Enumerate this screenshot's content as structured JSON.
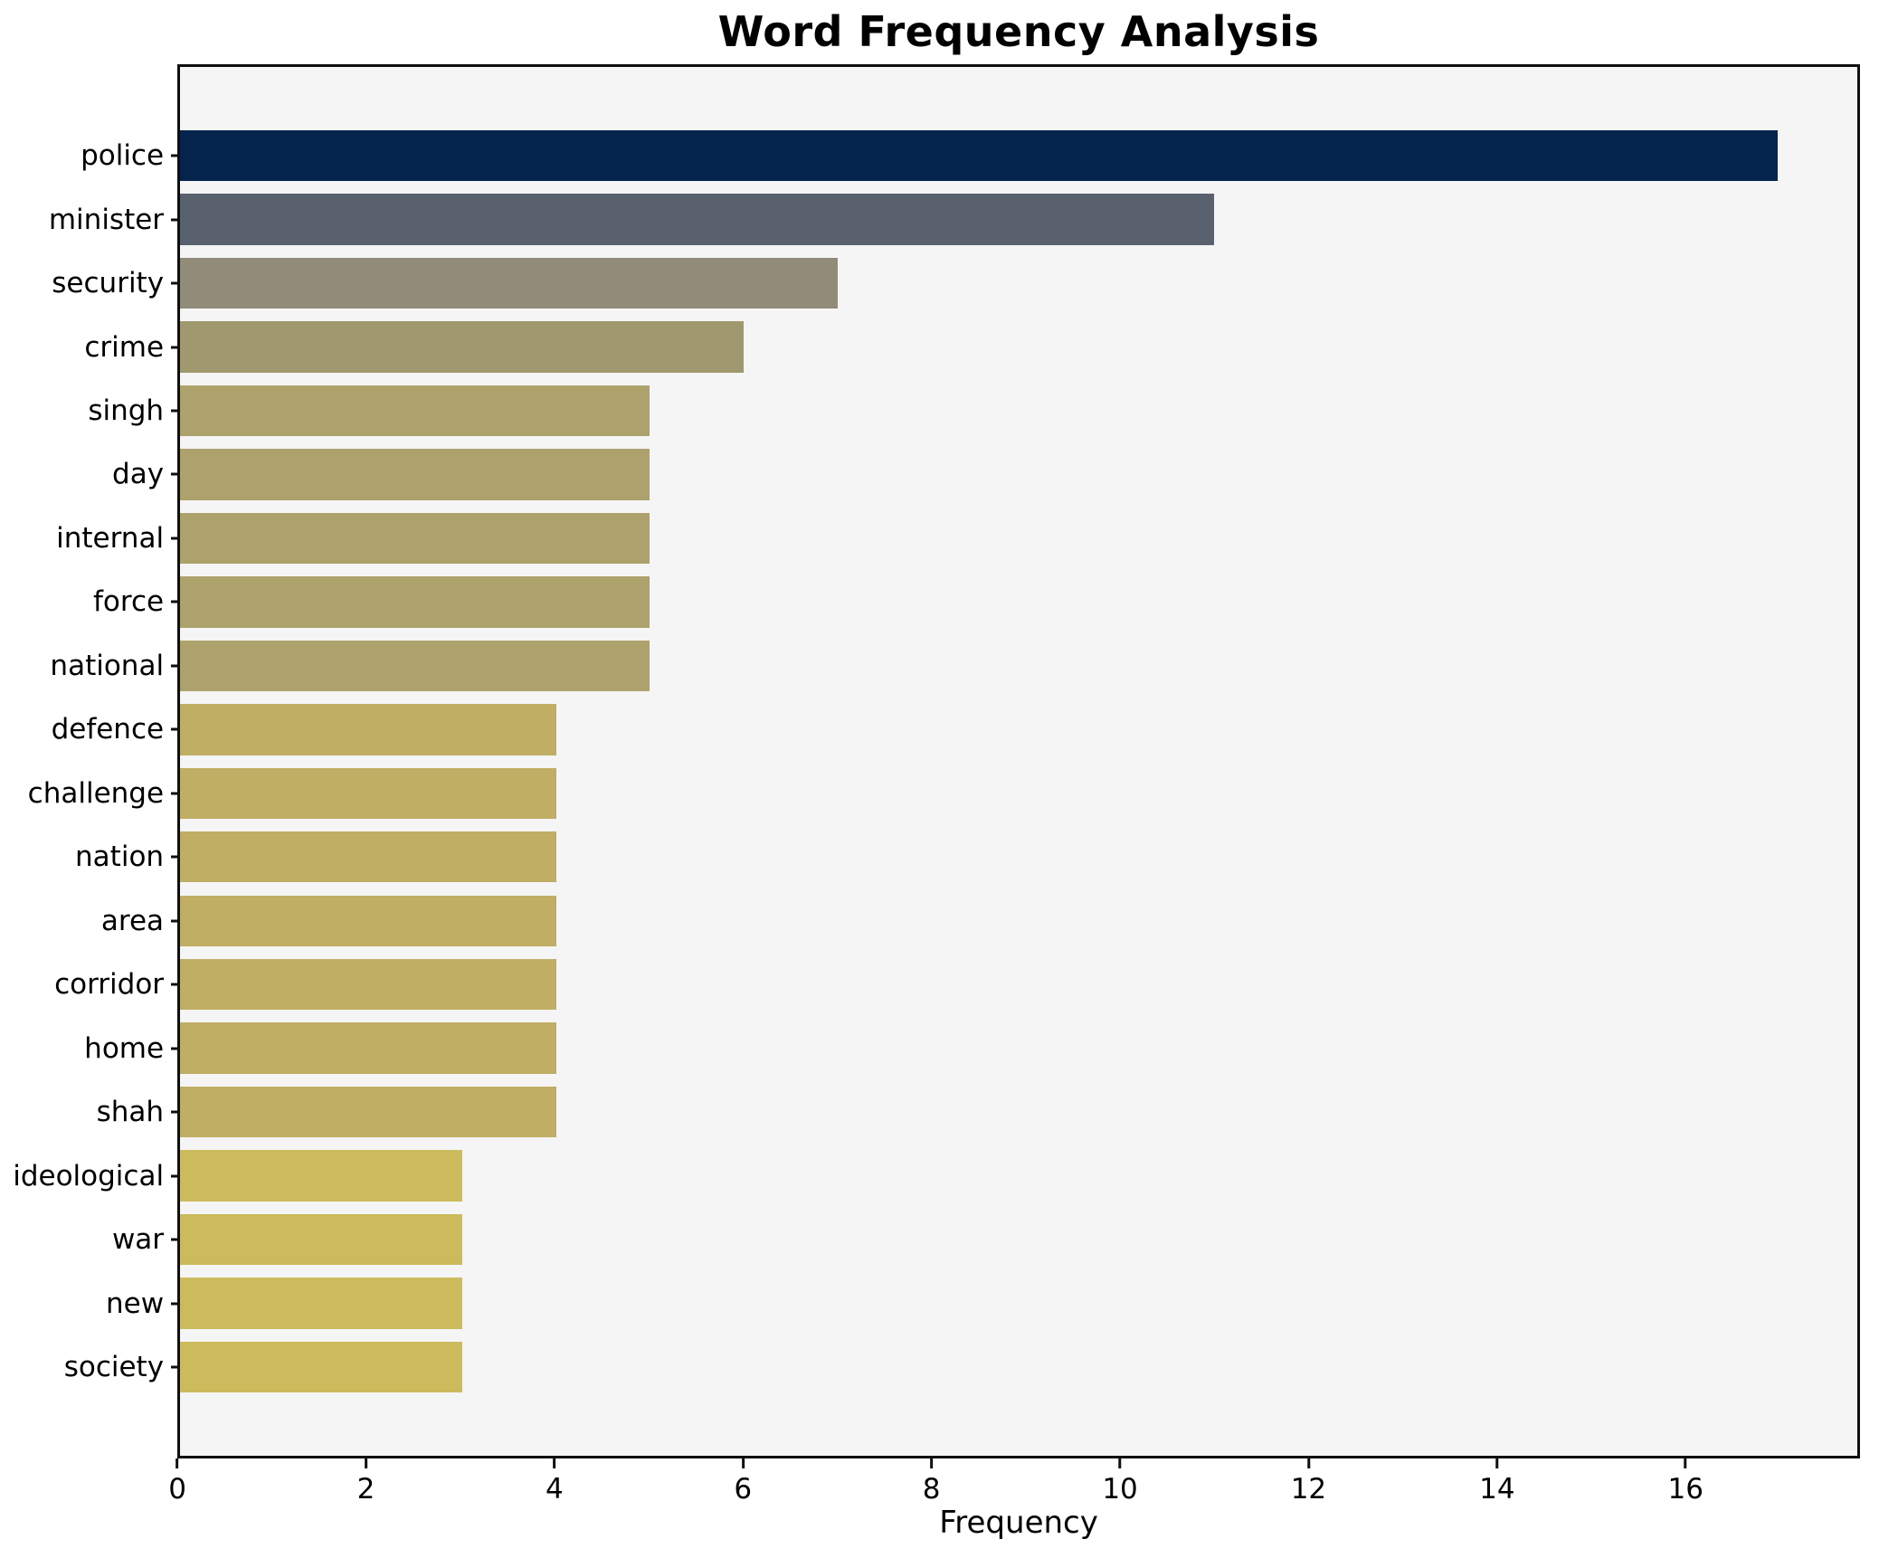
{
  "figure": {
    "background": "#ffffff",
    "plot_background": "#f5f5f6",
    "axis_color": "#0f0f0f"
  },
  "chart_data": {
    "type": "bar",
    "orientation": "horizontal",
    "title": "Word Frequency Analysis",
    "xlabel": "Frequency",
    "ylabel": "",
    "categories": [
      "police",
      "minister",
      "security",
      "crime",
      "singh",
      "day",
      "internal",
      "force",
      "national",
      "defence",
      "challenge",
      "nation",
      "area",
      "corridor",
      "home",
      "shah",
      "ideological",
      "war",
      "new",
      "society"
    ],
    "values": [
      17,
      11,
      7,
      6,
      5,
      5,
      5,
      5,
      5,
      4,
      4,
      4,
      4,
      4,
      4,
      4,
      3,
      3,
      3,
      3
    ],
    "bar_colors": [
      "#04234d",
      "#5a616e",
      "#918b79",
      "#a0986e",
      "#ada26b",
      "#ada26b",
      "#ada26b",
      "#ada26b",
      "#ada26b",
      "#bfae63",
      "#bfae63",
      "#bfae63",
      "#bfae63",
      "#bfae63",
      "#bfae63",
      "#bfae63",
      "#ccbb5c",
      "#ccbb5c",
      "#ccbb5c",
      "#ccbb5c"
    ],
    "xlim": [
      0,
      17.85
    ],
    "xticks": [
      0,
      2,
      4,
      6,
      8,
      10,
      12,
      14,
      16
    ],
    "grid": false,
    "legend": null
  }
}
